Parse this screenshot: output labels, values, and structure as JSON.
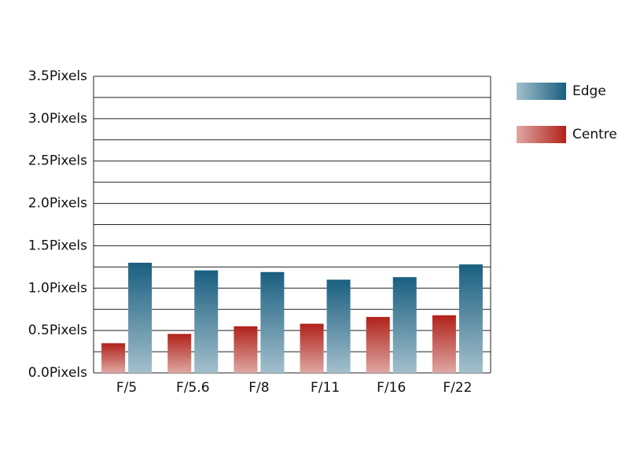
{
  "chart_data": {
    "type": "bar",
    "categories": [
      "F/5",
      "F/5.6",
      "F/8",
      "F/11",
      "F/16",
      "F/22"
    ],
    "series": [
      {
        "name": "Edge",
        "color": "#1a5f80",
        "values": [
          1.3,
          1.21,
          1.19,
          1.1,
          1.13,
          1.28
        ]
      },
      {
        "name": "Centre",
        "color": "#b0221a",
        "values": [
          0.35,
          0.46,
          0.55,
          0.58,
          0.66,
          0.68
        ]
      }
    ],
    "ylim": [
      0,
      3.5
    ],
    "yticks": [
      {
        "value": 0,
        "label": "0.0Pixels"
      },
      {
        "value": 0.5,
        "label": "0.5Pixels"
      },
      {
        "value": 1,
        "label": "1.0Pixels"
      },
      {
        "value": 1.5,
        "label": "1.5Pixels"
      },
      {
        "value": 2,
        "label": "2.0Pixels"
      },
      {
        "value": 2.5,
        "label": "2.5Pixels"
      },
      {
        "value": 3,
        "label": "3.0Pixels"
      },
      {
        "value": 3.5,
        "label": "3.5Pixels"
      }
    ],
    "minor_yticks": [
      0.25,
      0.75,
      1.25,
      1.75,
      2.25,
      2.75,
      3.25
    ],
    "grid": true,
    "legend": "right"
  }
}
